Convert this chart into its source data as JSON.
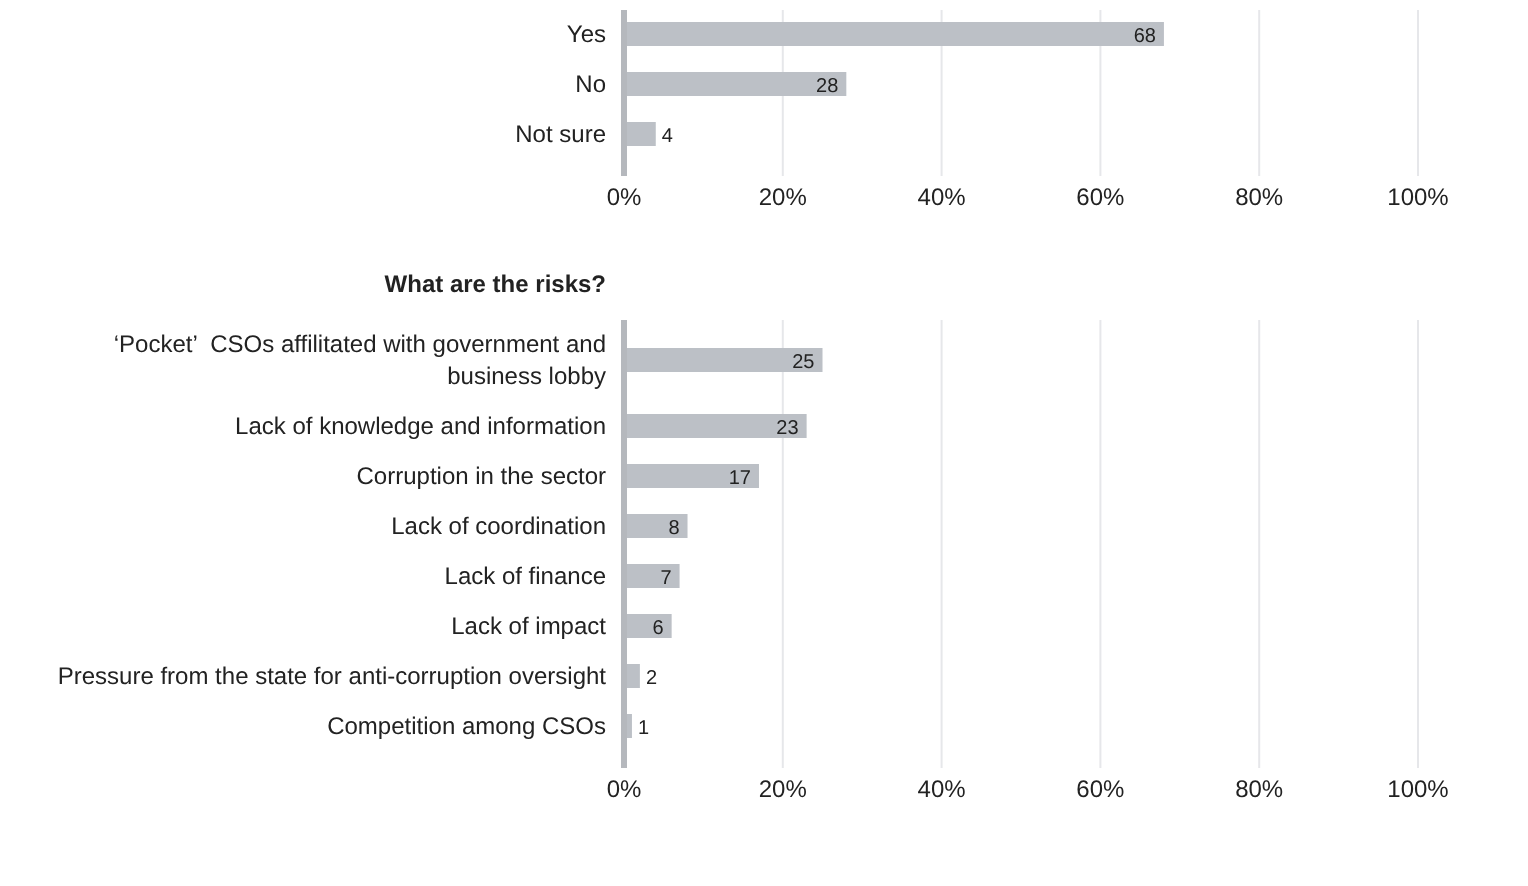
{
  "chart_data": [
    {
      "type": "bar",
      "orientation": "horizontal",
      "categories": [
        "Yes",
        "No",
        "Not sure"
      ],
      "values": [
        68,
        28,
        4
      ],
      "color": "#bcc0c6",
      "xlim": [
        0,
        100
      ],
      "xticks": [
        {
          "value": 0,
          "label": "0%"
        },
        {
          "value": 20,
          "label": "20%"
        },
        {
          "value": 40,
          "label": "40%"
        },
        {
          "value": 60,
          "label": "60%"
        },
        {
          "value": 80,
          "label": "80%"
        },
        {
          "value": 100,
          "label": "100%"
        }
      ],
      "grid": "x",
      "data_labels": true
    },
    {
      "type": "bar",
      "orientation": "horizontal",
      "title": "What are the risks?",
      "categories": [
        "‘Pocket’  CSOs affilitated with government and business lobby",
        "Lack of knowledge and information",
        "Corruption in the sector",
        "Lack of coordination",
        "Lack of finance",
        "Lack of impact",
        "Pressure from the state for anti-corruption oversight",
        "Competition among CSOs"
      ],
      "values": [
        25,
        23,
        17,
        8,
        7,
        6,
        2,
        1
      ],
      "color": "#bcc0c6",
      "xlim": [
        0,
        100
      ],
      "xticks": [
        {
          "value": 0,
          "label": "0%"
        },
        {
          "value": 20,
          "label": "20%"
        },
        {
          "value": 40,
          "label": "40%"
        },
        {
          "value": 60,
          "label": "60%"
        },
        {
          "value": 80,
          "label": "80%"
        },
        {
          "value": 100,
          "label": "100%"
        }
      ],
      "grid": "x",
      "data_labels": true
    }
  ]
}
